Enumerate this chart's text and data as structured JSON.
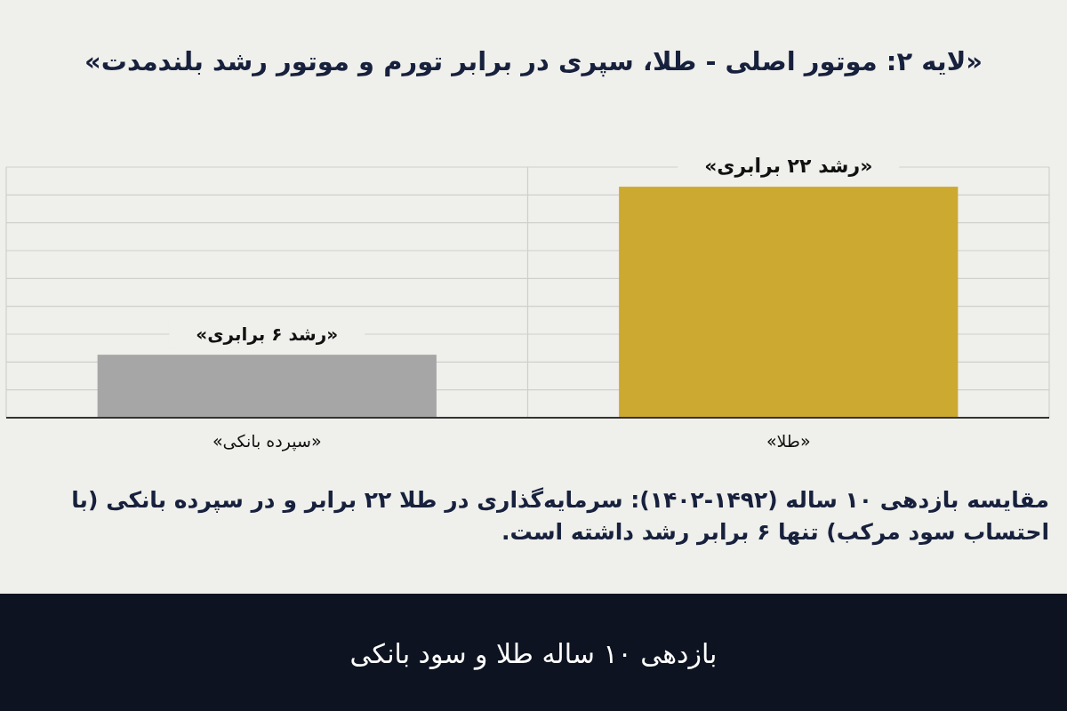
{
  "chart_data": {
    "type": "bar",
    "title": "«لایه ۲: موتور اصلی - طلا، سپری در برابر تورم و موتور رشد بلندمدت»",
    "categories": [
      "«سپرده بانکی»",
      "«طلا»"
    ],
    "values": [
      6,
      22
    ],
    "colors": [
      "#a6a6a6",
      "#cca930"
    ],
    "value_labels": [
      "«رشد ۶ برابری»",
      "«رشد ۲۲ برابری»"
    ],
    "grid": true,
    "annotations": [
      "مقایسه بازدهی ۱۰ ساله (۱۴۹۲-۱۴۰۲): سرمایه‌گذاری در طلا ۲۲ برابر و در سپرده بانکی (با احتساب سود مرکب) تنها ۶ برابر رشد داشته است.",
      "بازدهی ۱۰ ساله طلا و سود بانکی"
    ]
  }
}
